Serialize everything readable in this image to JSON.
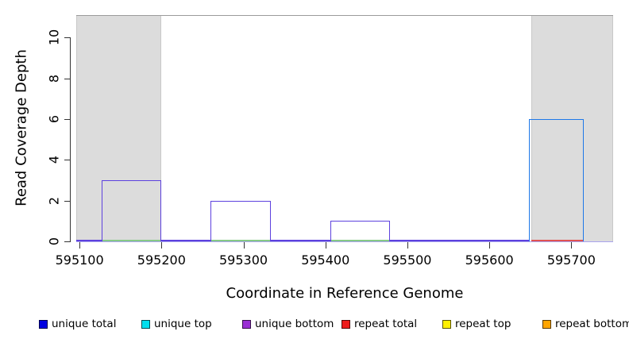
{
  "chart_data": {
    "type": "step-line coverage plot",
    "title": "",
    "xlabel": "Coordinate in Reference Genome",
    "ylabel": "Read Coverage Depth",
    "xlim": [
      595096,
      595751
    ],
    "ylim": [
      0,
      11.1
    ],
    "x_ticks": [
      595100,
      595200,
      595300,
      595400,
      595500,
      595600,
      595700
    ],
    "y_ticks": [
      0,
      2,
      4,
      6,
      8,
      10
    ],
    "grid": "off",
    "legend_position": "bottom",
    "repeat_regions": [
      {
        "start": 595096,
        "end": 595200
      },
      {
        "start": 595651,
        "end": 595751
      }
    ],
    "coverage_bars": [
      {
        "series": "unique bottom",
        "color": "#5d41de",
        "start": 595127,
        "end": 595200,
        "depth": 3
      },
      {
        "series": "unique bottom",
        "color": "#5d41de",
        "start": 595260,
        "end": 595333,
        "depth": 2
      },
      {
        "series": "unique bottom",
        "color": "#5d41de",
        "start": 595406,
        "end": 595479,
        "depth": 1
      },
      {
        "series": "unique total",
        "color": "#1e78e8",
        "start": 595648,
        "end": 595715,
        "depth": 6
      }
    ],
    "zero_lines_top": [
      {
        "color": "#5d41de",
        "start": 595096,
        "end": 595127
      },
      {
        "color": "#86c986",
        "start": 595127,
        "end": 595200
      },
      {
        "color": "#5d41de",
        "start": 595200,
        "end": 595260
      },
      {
        "color": "#86c986",
        "start": 595260,
        "end": 595333
      },
      {
        "color": "#5d41de",
        "start": 595333,
        "end": 595406
      },
      {
        "color": "#86c986",
        "start": 595406,
        "end": 595479
      },
      {
        "color": "#5d41de",
        "start": 595479,
        "end": 595648
      },
      {
        "color": "#e05252",
        "start": 595651,
        "end": 595715
      }
    ],
    "zero_line_bottom": {
      "color": "#a9a4ee",
      "start": 595096,
      "end": 595751
    }
  },
  "legend": {
    "items": [
      {
        "label": "unique total",
        "color": "#0000e0"
      },
      {
        "label": "unique top",
        "color": "#00e0ee"
      },
      {
        "label": "unique bottom",
        "color": "#9a2fd4"
      },
      {
        "label": "repeat total",
        "color": "#ee1c1c"
      },
      {
        "label": "repeat top",
        "color": "#fff000"
      },
      {
        "label": "repeat bottom",
        "color": "#ffa500"
      }
    ]
  },
  "styles": {
    "repeat_region_fill": "#dcdcdc",
    "repeat_region_border": "#c8c8c8",
    "plot_top_line": "#9b9b9b",
    "axis_color": "#333333"
  }
}
